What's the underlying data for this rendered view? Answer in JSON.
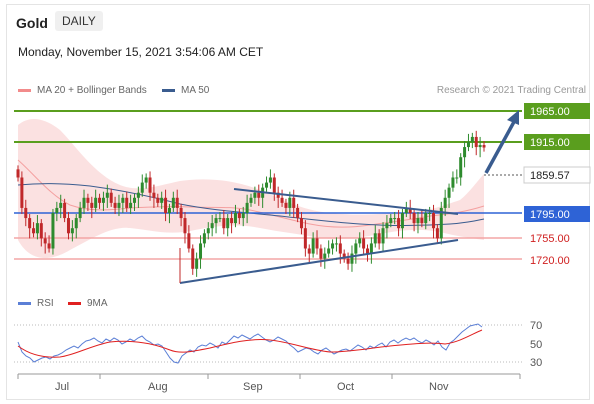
{
  "header": {
    "instrument": "Gold",
    "timeframe": "DAILY",
    "datetime": "Monday, November 15, 2021 3:54:06 AM CET"
  },
  "legend_top": [
    {
      "label": "MA 20 + Bollinger Bands",
      "color": "#f28b8b"
    },
    {
      "label": "MA 50",
      "color": "#3a5c8f"
    }
  ],
  "credit": "Research © 2021 Trading Central",
  "legend_bottom": [
    {
      "label": "RSI",
      "color": "#5b7fd6"
    },
    {
      "label": "9MA",
      "color": "#e02020"
    }
  ],
  "chart_data": [
    {
      "type": "candlestick",
      "series": "Gold DAILY",
      "price_levels": [
        {
          "value": "1965.00",
          "style": "resistance-green"
        },
        {
          "value": "1915.00",
          "style": "resistance-green"
        },
        {
          "value": "1859.57",
          "style": "last-price"
        },
        {
          "value": "1795.00",
          "style": "pivot-blue"
        },
        {
          "value": "1755.00",
          "style": "support-red"
        },
        {
          "value": "1720.00",
          "style": "support-red"
        }
      ],
      "x_tick_labels": [
        "Jul",
        "Aug",
        "Sep",
        "Oct",
        "Nov"
      ],
      "closes": [
        1830,
        1800,
        1790,
        1780,
        1775,
        1785,
        1770,
        1765,
        1760,
        1795,
        1800,
        1805,
        1790,
        1775,
        1780,
        1790,
        1800,
        1810,
        1805,
        1800,
        1810,
        1805,
        1810,
        1815,
        1805,
        1800,
        1805,
        1810,
        1800,
        1805,
        1810,
        1815,
        1825,
        1830,
        1815,
        1810,
        1805,
        1810,
        1795,
        1800,
        1810,
        1800,
        1790,
        1775,
        1760,
        1740,
        1750,
        1765,
        1775,
        1780,
        1785,
        1790,
        1790,
        1780,
        1790,
        1785,
        1795,
        1790,
        1795,
        1805,
        1810,
        1815,
        1810,
        1820,
        1825,
        1830,
        1815,
        1810,
        1805,
        1800,
        1810,
        1800,
        1790,
        1780,
        1760,
        1755,
        1770,
        1760,
        1750,
        1755,
        1760,
        1765,
        1765,
        1755,
        1750,
        1745,
        1755,
        1765,
        1770,
        1760,
        1755,
        1765,
        1775,
        1765,
        1780,
        1785,
        1790,
        1790,
        1780,
        1795,
        1800,
        1795,
        1785,
        1790,
        1785,
        1795,
        1795,
        1780,
        1770,
        1800,
        1810,
        1820,
        1830,
        1830,
        1850,
        1860,
        1865,
        1870,
        1860,
        1862,
        1859.57
      ]
    },
    {
      "type": "line",
      "series": [
        "RSI",
        "9MA"
      ],
      "y_tick_labels": [
        "70",
        "50",
        "30"
      ]
    }
  ]
}
